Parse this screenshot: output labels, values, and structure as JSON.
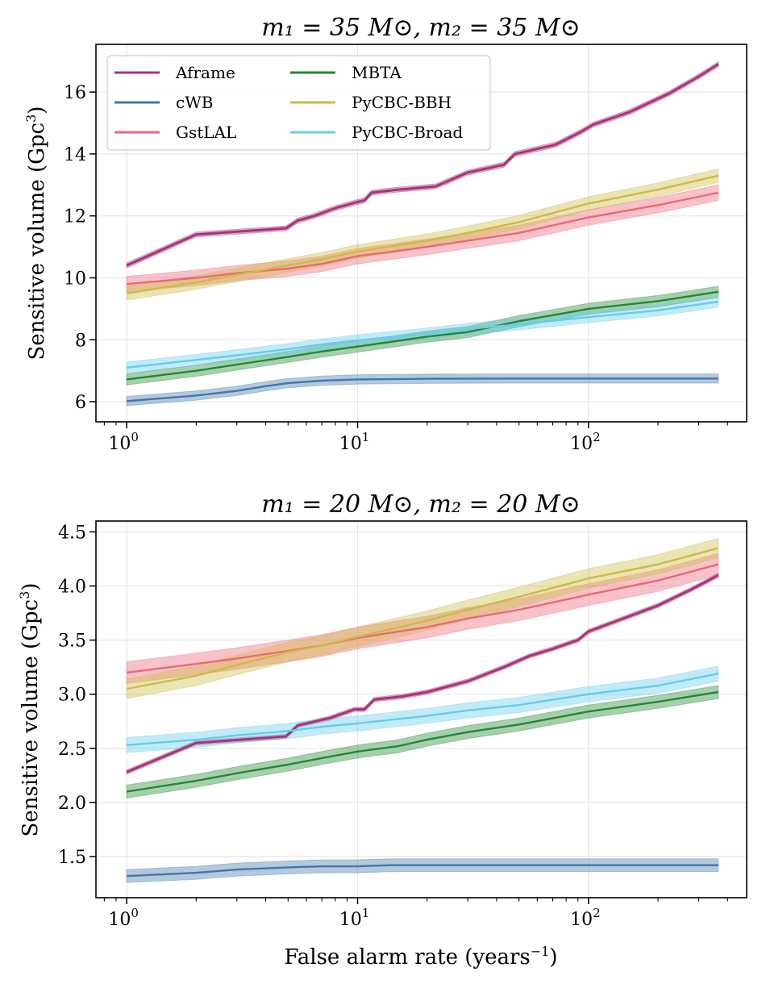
{
  "figure": {
    "xlabel": "False alarm rate (years",
    "xlabel_sup": "−1",
    "xlabel_close": ")",
    "ylabel": "Sensitive volume (Gpc",
    "ylabel_sup": "3",
    "ylabel_close": ")"
  },
  "chart_data": [
    {
      "type": "line",
      "title": "m₁ = 35 M⊙, m₂ = 35 M⊙",
      "xlabel": "",
      "ylabel": "Sensitive volume (Gpc³)",
      "xscale": "log",
      "xlim": [
        0.736,
        484
      ],
      "ylim": [
        5.35,
        17.54
      ],
      "xticks": [
        {
          "value": 1,
          "label": "10",
          "sup": "0"
        },
        {
          "value": 10,
          "label": "10",
          "sup": "1"
        },
        {
          "value": 100,
          "label": "10",
          "sup": "2"
        }
      ],
      "yticks": [
        {
          "value": 6,
          "label": "6"
        },
        {
          "value": 8,
          "label": "8"
        },
        {
          "value": 10,
          "label": "10"
        },
        {
          "value": 12,
          "label": "12"
        },
        {
          "value": 14,
          "label": "14"
        },
        {
          "value": 16,
          "label": "16"
        }
      ],
      "grid": true,
      "legend": {
        "placement": "top-left",
        "columns": 2
      },
      "series": [
        {
          "name": "Aframe",
          "color": "#aa3377",
          "x": [
            1,
            2,
            4.9,
            5.5,
            6.5,
            8,
            10,
            10.7,
            11.5,
            15,
            21.7,
            30,
            43,
            48,
            72,
            92,
            105,
            150,
            223,
            300,
            365
          ],
          "y": [
            10.4,
            11.4,
            11.6,
            11.85,
            12.0,
            12.25,
            12.45,
            12.5,
            12.75,
            12.85,
            12.95,
            13.4,
            13.65,
            14.0,
            14.3,
            14.7,
            14.95,
            15.35,
            15.95,
            16.5,
            16.9
          ],
          "err": [
            0.08,
            0.08,
            0.08,
            0.08,
            0.08,
            0.08,
            0.08,
            0.08,
            0.08,
            0.08,
            0.08,
            0.08,
            0.08,
            0.08,
            0.08,
            0.08,
            0.08,
            0.08,
            0.08,
            0.08,
            0.08
          ]
        },
        {
          "name": "cWB",
          "color": "#4477aa",
          "x": [
            1,
            2,
            3,
            4,
            5,
            7,
            10,
            20,
            50,
            100,
            200,
            365
          ],
          "y": [
            6.02,
            6.2,
            6.35,
            6.5,
            6.6,
            6.68,
            6.72,
            6.74,
            6.75,
            6.75,
            6.75,
            6.75
          ],
          "err": [
            0.15,
            0.15,
            0.15,
            0.15,
            0.15,
            0.15,
            0.15,
            0.15,
            0.15,
            0.15,
            0.15,
            0.15
          ]
        },
        {
          "name": "GstLAL",
          "color": "#ee6677",
          "x": [
            1,
            2,
            3,
            5,
            7,
            10,
            20,
            30,
            50,
            100,
            200,
            365
          ],
          "y": [
            9.8,
            10.0,
            10.15,
            10.3,
            10.45,
            10.7,
            11.0,
            11.2,
            11.45,
            11.95,
            12.35,
            12.75
          ],
          "err": [
            0.25,
            0.25,
            0.25,
            0.25,
            0.25,
            0.25,
            0.25,
            0.25,
            0.25,
            0.25,
            0.25,
            0.25
          ]
        },
        {
          "name": "MBTA",
          "color": "#228833",
          "x": [
            1,
            2,
            3,
            5,
            7,
            10,
            20,
            30,
            50,
            100,
            200,
            300,
            365
          ],
          "y": [
            6.72,
            7.0,
            7.2,
            7.45,
            7.62,
            7.78,
            8.1,
            8.25,
            8.6,
            9.0,
            9.25,
            9.45,
            9.55
          ],
          "err": [
            0.18,
            0.18,
            0.18,
            0.18,
            0.18,
            0.18,
            0.18,
            0.18,
            0.18,
            0.18,
            0.18,
            0.18,
            0.18
          ]
        },
        {
          "name": "PyCBC-BBH",
          "color": "#ccbb44",
          "x": [
            1,
            2,
            3,
            5,
            7,
            10,
            20,
            30,
            50,
            100,
            200,
            365
          ],
          "y": [
            9.5,
            9.85,
            10.1,
            10.4,
            10.6,
            10.85,
            11.2,
            11.45,
            11.8,
            12.4,
            12.85,
            13.3
          ],
          "err": [
            0.22,
            0.22,
            0.22,
            0.22,
            0.22,
            0.22,
            0.22,
            0.22,
            0.22,
            0.22,
            0.22,
            0.22
          ]
        },
        {
          "name": "PyCBC-Broad",
          "color": "#66ccee",
          "x": [
            1,
            2,
            3,
            5,
            7,
            10,
            20,
            30,
            50,
            100,
            200,
            365
          ],
          "y": [
            7.1,
            7.35,
            7.5,
            7.7,
            7.85,
            7.98,
            8.2,
            8.35,
            8.5,
            8.73,
            8.95,
            9.23
          ],
          "err": [
            0.18,
            0.18,
            0.18,
            0.18,
            0.18,
            0.18,
            0.18,
            0.18,
            0.18,
            0.18,
            0.18,
            0.18
          ]
        }
      ]
    },
    {
      "type": "line",
      "title": "m₁ = 20 M⊙, m₂ = 20 M⊙",
      "xlabel": "False alarm rate (years⁻¹)",
      "ylabel": "Sensitive volume (Gpc³)",
      "xscale": "log",
      "xlim": [
        0.736,
        484
      ],
      "ylim": [
        1.12,
        4.6
      ],
      "xticks": [
        {
          "value": 1,
          "label": "10",
          "sup": "0"
        },
        {
          "value": 10,
          "label": "10",
          "sup": "1"
        },
        {
          "value": 100,
          "label": "10",
          "sup": "2"
        }
      ],
      "yticks": [
        {
          "value": 1.5,
          "label": "1.5"
        },
        {
          "value": 2.0,
          "label": "2.0"
        },
        {
          "value": 2.5,
          "label": "2.5"
        },
        {
          "value": 3.0,
          "label": "3.0"
        },
        {
          "value": 3.5,
          "label": "3.5"
        },
        {
          "value": 4.0,
          "label": "4.0"
        },
        {
          "value": 4.5,
          "label": "4.5"
        }
      ],
      "grid": true,
      "legend": null,
      "series": [
        {
          "name": "Aframe",
          "color": "#aa3377",
          "x": [
            1,
            2,
            4.9,
            5.5,
            7.6,
            9.7,
            10.7,
            11.8,
            15.7,
            20,
            30,
            43,
            55,
            70,
            90,
            100,
            150,
            200,
            280,
            365
          ],
          "y": [
            2.28,
            2.55,
            2.61,
            2.71,
            2.78,
            2.86,
            2.86,
            2.95,
            2.98,
            3.02,
            3.12,
            3.25,
            3.35,
            3.42,
            3.5,
            3.58,
            3.72,
            3.82,
            3.97,
            4.1
          ],
          "err": [
            0.02,
            0.02,
            0.02,
            0.02,
            0.02,
            0.02,
            0.02,
            0.02,
            0.02,
            0.02,
            0.02,
            0.02,
            0.02,
            0.02,
            0.02,
            0.02,
            0.02,
            0.02,
            0.02,
            0.02
          ]
        },
        {
          "name": "cWB",
          "color": "#4477aa",
          "x": [
            1,
            2,
            3,
            5,
            7,
            10,
            14,
            30,
            100,
            365
          ],
          "y": [
            1.32,
            1.35,
            1.38,
            1.4,
            1.41,
            1.41,
            1.42,
            1.42,
            1.42,
            1.42
          ],
          "err": [
            0.06,
            0.06,
            0.06,
            0.06,
            0.06,
            0.06,
            0.06,
            0.06,
            0.06,
            0.06
          ]
        },
        {
          "name": "GstLAL",
          "color": "#ee6677",
          "x": [
            1,
            2,
            3,
            5,
            7,
            10,
            20,
            30,
            50,
            100,
            200,
            365
          ],
          "y": [
            3.2,
            3.28,
            3.33,
            3.4,
            3.45,
            3.52,
            3.62,
            3.7,
            3.78,
            3.92,
            4.05,
            4.2
          ],
          "err": [
            0.1,
            0.1,
            0.1,
            0.1,
            0.1,
            0.1,
            0.1,
            0.1,
            0.1,
            0.1,
            0.1,
            0.1
          ]
        },
        {
          "name": "MBTA",
          "color": "#228833",
          "x": [
            1,
            2,
            3,
            5,
            7,
            10,
            15,
            20,
            30,
            50,
            100,
            200,
            365
          ],
          "y": [
            2.1,
            2.2,
            2.27,
            2.35,
            2.41,
            2.47,
            2.52,
            2.58,
            2.65,
            2.72,
            2.84,
            2.93,
            3.02
          ],
          "err": [
            0.06,
            0.06,
            0.06,
            0.06,
            0.06,
            0.06,
            0.06,
            0.06,
            0.06,
            0.06,
            0.06,
            0.06,
            0.06
          ]
        },
        {
          "name": "PyCBC-BBH",
          "color": "#ccbb44",
          "x": [
            1,
            2,
            3,
            5,
            7,
            10,
            20,
            30,
            50,
            100,
            200,
            365
          ],
          "y": [
            3.05,
            3.17,
            3.27,
            3.39,
            3.45,
            3.53,
            3.68,
            3.78,
            3.9,
            4.07,
            4.2,
            4.35
          ],
          "err": [
            0.09,
            0.09,
            0.09,
            0.09,
            0.09,
            0.09,
            0.09,
            0.09,
            0.09,
            0.09,
            0.09,
            0.09
          ]
        },
        {
          "name": "PyCBC-Broad",
          "color": "#66ccee",
          "x": [
            1,
            2,
            3,
            5,
            7,
            10,
            20,
            30,
            50,
            100,
            200,
            365
          ],
          "y": [
            2.53,
            2.58,
            2.62,
            2.66,
            2.7,
            2.73,
            2.8,
            2.85,
            2.9,
            3.0,
            3.08,
            3.19
          ],
          "err": [
            0.07,
            0.07,
            0.07,
            0.07,
            0.07,
            0.07,
            0.07,
            0.07,
            0.07,
            0.07,
            0.07,
            0.07
          ]
        }
      ]
    }
  ]
}
